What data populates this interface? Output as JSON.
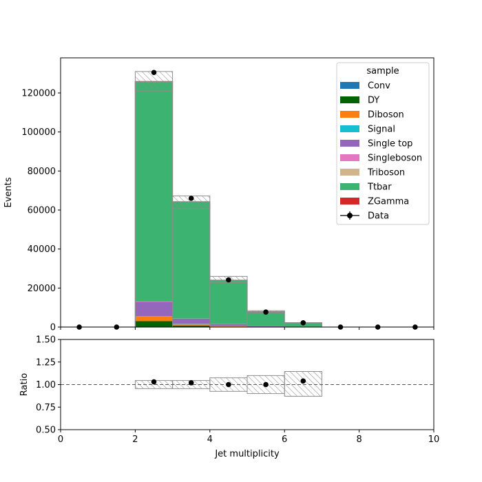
{
  "chart_data": {
    "type": "bar",
    "stacked": true,
    "x_edges": [
      0,
      1,
      2,
      3,
      4,
      5,
      6,
      7,
      8,
      9,
      10
    ],
    "bin_centers": [
      0.5,
      1.5,
      2.5,
      3.5,
      4.5,
      5.5,
      6.5,
      7.5,
      8.5,
      9.5
    ],
    "xlabel": "Jet multiplicity",
    "xlim": [
      0,
      10
    ],
    "xticks": [
      "0",
      "2",
      "4",
      "6",
      "8",
      "10"
    ],
    "xtick_values": [
      0,
      2,
      4,
      6,
      8,
      10
    ],
    "main": {
      "ylabel": "Events",
      "ylim": [
        0,
        138000
      ],
      "yticks": [
        "0",
        "20000",
        "40000",
        "60000",
        "80000",
        "100000",
        "120000"
      ],
      "ytick_values": [
        0,
        20000,
        40000,
        60000,
        80000,
        100000,
        120000
      ],
      "legend": {
        "title": "sample",
        "placement": "top-right"
      },
      "series": [
        {
          "name": "Conv",
          "color": "#1f77b4",
          "values": [
            0,
            0,
            0,
            0,
            0,
            0,
            0,
            0,
            0,
            0
          ]
        },
        {
          "name": "DY",
          "color": "#006400",
          "values": [
            0,
            0,
            3000,
            800,
            200,
            50,
            10,
            0,
            0,
            0
          ]
        },
        {
          "name": "Diboson",
          "color": "#ff7f0e",
          "values": [
            0,
            0,
            2500,
            700,
            200,
            60,
            15,
            0,
            0,
            0
          ]
        },
        {
          "name": "Signal",
          "color": "#17becf",
          "values": [
            0,
            0,
            100,
            150,
            150,
            60,
            20,
            0,
            0,
            0
          ]
        },
        {
          "name": "Single top",
          "color": "#9467bd",
          "values": [
            0,
            0,
            7300,
            2600,
            950,
            300,
            100,
            0,
            0,
            0
          ]
        },
        {
          "name": "Singleboson",
          "color": "#e377c2",
          "values": [
            0,
            0,
            200,
            100,
            50,
            20,
            5,
            0,
            0,
            0
          ]
        },
        {
          "name": "Triboson",
          "color": "#d2b48c",
          "values": [
            0,
            0,
            10,
            5,
            3,
            1,
            0,
            0,
            0,
            0
          ]
        },
        {
          "name": "Ttbar",
          "color": "#3cb371",
          "values": [
            0,
            0,
            112500,
            59800,
            22450,
            7400,
            1950,
            0,
            0,
            0
          ]
        },
        {
          "name": "ZGamma",
          "color": "#d62728",
          "values": [
            0,
            0,
            300,
            100,
            40,
            10,
            2,
            0,
            0,
            0
          ]
        }
      ],
      "uncertainty": {
        "lower": [
          0,
          0,
          121000,
          60600,
          22800,
          7200,
          1900,
          0,
          0,
          0
        ],
        "upper": [
          0,
          0,
          131000,
          67200,
          26000,
          8400,
          2300,
          0,
          0,
          0
        ]
      },
      "data": {
        "name": "Data",
        "values": [
          0,
          0,
          130500,
          66000,
          24200,
          7700,
          2200,
          0,
          0,
          0
        ]
      }
    },
    "ratio": {
      "ylabel": "Ratio",
      "ylim": [
        0.5,
        1.5
      ],
      "yticks": [
        "0.50",
        "0.75",
        "1.00",
        "1.25",
        "1.50"
      ],
      "ytick_values": [
        0.5,
        0.75,
        1.0,
        1.25,
        1.5
      ],
      "reference": 1.0,
      "points": [
        {
          "x": 2.5,
          "y": 1.03
        },
        {
          "x": 3.5,
          "y": 1.02
        },
        {
          "x": 4.5,
          "y": 1.0
        },
        {
          "x": 5.5,
          "y": 1.0
        },
        {
          "x": 6.5,
          "y": 1.04
        }
      ],
      "uncertainty_bins": [
        {
          "lo": 2,
          "hi": 3,
          "low": 0.955,
          "high": 1.045
        },
        {
          "lo": 3,
          "hi": 4,
          "low": 0.955,
          "high": 1.045
        },
        {
          "lo": 4,
          "hi": 5,
          "low": 0.925,
          "high": 1.075
        },
        {
          "lo": 5,
          "hi": 6,
          "low": 0.9,
          "high": 1.1
        },
        {
          "lo": 6,
          "hi": 7,
          "low": 0.87,
          "high": 1.145
        }
      ]
    }
  }
}
